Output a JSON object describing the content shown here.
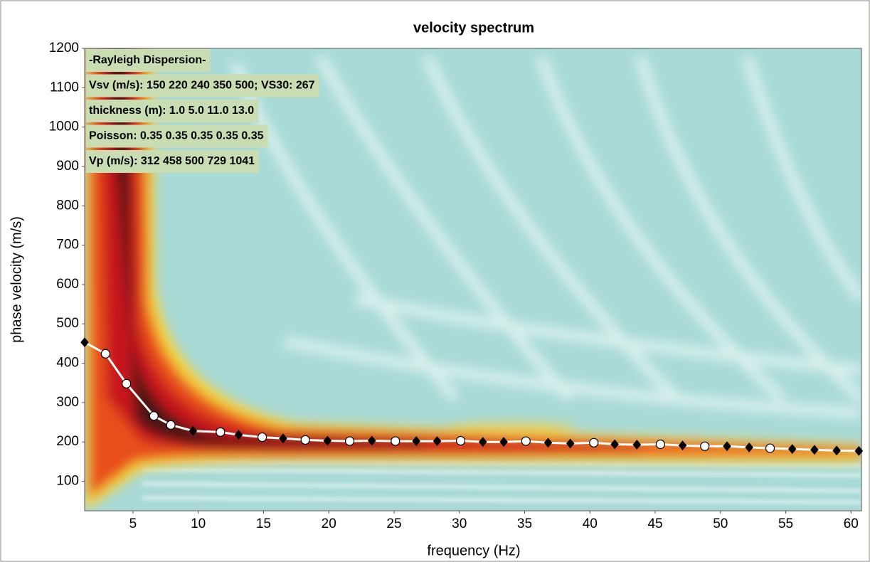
{
  "chart_data": {
    "type": "scatter",
    "title": "velocity spectrum",
    "xlabel": "frequency (Hz)",
    "ylabel": "phase velocity (m/s)",
    "annotations": [
      "-Rayleigh Dispersion-",
      "Vsv (m/s): 150  220  240  350  500; VS30: 267",
      "thickness (m): 1.0    5.0   11.0   13.0",
      "Poisson: 0.35  0.35  0.35  0.35  0.35",
      "Vp (m/s): 312   458   500   729  1041"
    ],
    "xlim": [
      1.3,
      60.8
    ],
    "ylim": [
      25,
      1200
    ],
    "xticks": [
      5,
      10,
      15,
      20,
      25,
      30,
      35,
      40,
      45,
      50,
      55,
      60
    ],
    "yticks": [
      100,
      200,
      300,
      400,
      500,
      600,
      700,
      800,
      900,
      1000,
      1100,
      1200
    ],
    "line_color": "#ffffff",
    "series": [
      {
        "marker": "diamond",
        "color": "#000000",
        "x": [
          1.3,
          9.6,
          13.1,
          16.5,
          19.9,
          23.3,
          26.7,
          28.3,
          31.8,
          33.4,
          36.8,
          38.5,
          41.9,
          43.6,
          47.1,
          50.5,
          52.2,
          55.5,
          57.2,
          58.9,
          60.6
        ],
        "values": [
          453,
          228,
          218,
          209,
          203,
          203,
          202,
          202,
          200,
          200,
          198,
          196,
          194,
          193,
          191,
          189,
          186,
          182,
          180,
          178,
          177
        ]
      },
      {
        "marker": "circle",
        "color": "#ffffff",
        "x": [
          2.9,
          4.5,
          6.6,
          7.9,
          11.7,
          14.9,
          18.2,
          21.6,
          25.1,
          30.1,
          35.1,
          40.3,
          45.4,
          48.8,
          53.8
        ],
        "values": [
          424,
          348,
          266,
          243,
          225,
          212,
          205,
          202,
          202,
          203,
          202,
          198,
          194,
          189,
          184
        ]
      }
    ]
  }
}
